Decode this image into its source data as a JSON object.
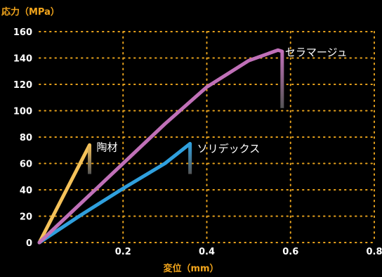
{
  "chart_data": {
    "type": "line",
    "ylabel": "応力（MPa）",
    "xlabel": "変位（mm）",
    "xlim": [
      0,
      0.8
    ],
    "ylim": [
      0,
      160
    ],
    "xticks": [
      "0.2",
      "0.4",
      "0.6",
      "0.8"
    ],
    "yticks": [
      "0",
      "20",
      "40",
      "60",
      "80",
      "100",
      "120",
      "140",
      "160"
    ],
    "grid": true,
    "series": [
      {
        "name": "陶材",
        "color": "#f5c25a",
        "x": [
          0,
          0.12,
          0.12
        ],
        "y": [
          0,
          74,
          52
        ]
      },
      {
        "name": "ソリデックス",
        "color": "#2fa0de",
        "x": [
          0,
          0.1,
          0.2,
          0.3,
          0.36,
          0.36
        ],
        "y": [
          0,
          21,
          41,
          60,
          75,
          52
        ]
      },
      {
        "name": "セラマージュ",
        "color": "#c070b8",
        "x": [
          0,
          0.1,
          0.2,
          0.3,
          0.4,
          0.5,
          0.57,
          0.58,
          0.58
        ],
        "y": [
          0,
          30,
          60,
          90,
          118,
          138,
          146,
          145,
          102
        ]
      }
    ]
  }
}
